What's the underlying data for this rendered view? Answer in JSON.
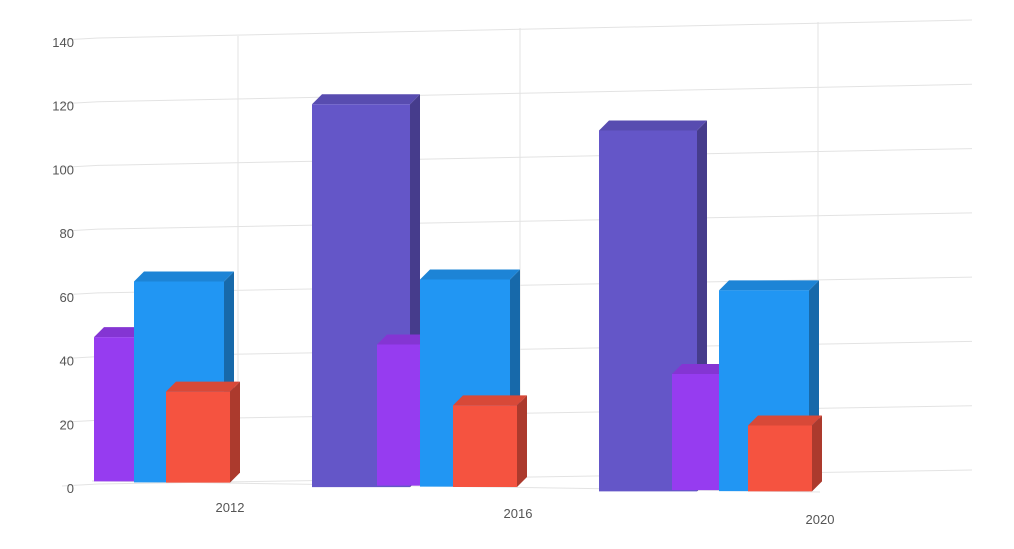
{
  "chart_data": {
    "type": "bar",
    "style": "3d",
    "categories": [
      "2012",
      "2016",
      "2020"
    ],
    "series": [
      {
        "values": [
          null,
          122,
          115
        ],
        "color": "#6456C8"
      },
      {
        "values": [
          46,
          45,
          37
        ],
        "color": "#963CF0"
      },
      {
        "values": [
          64,
          66,
          64
        ],
        "color": "#2196F3"
      },
      {
        "values": [
          29,
          26,
          21
        ],
        "color": "#F55340"
      }
    ],
    "y_ticks": [
      "0",
      "20",
      "40",
      "60",
      "80",
      "100",
      "120",
      "140"
    ],
    "ylim": [
      0,
      140
    ],
    "grid": true,
    "legend": "none"
  }
}
